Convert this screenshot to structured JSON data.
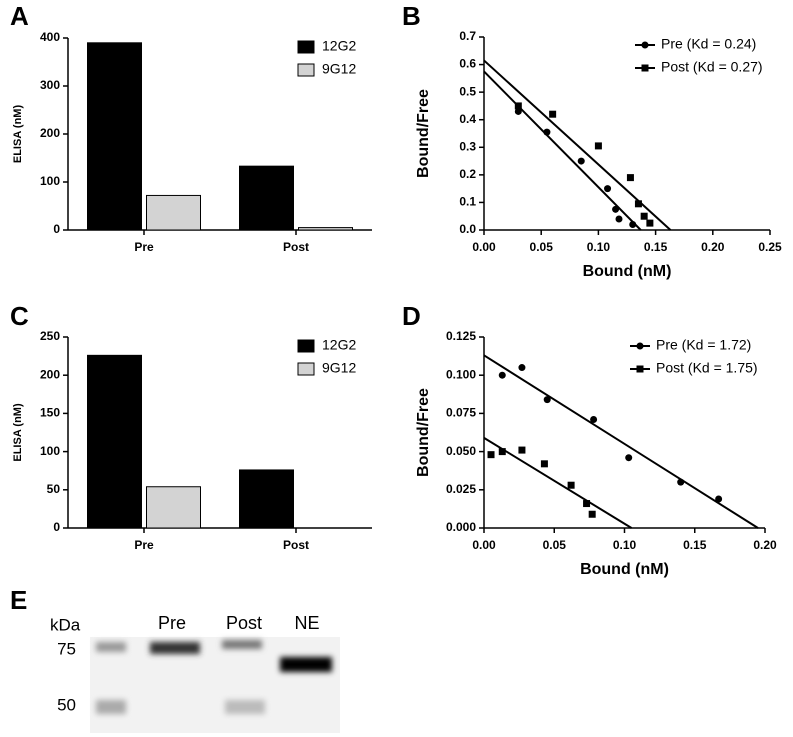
{
  "chart_data": [
    {
      "type": "bar",
      "panel": "A",
      "ylabel": "ELISA (nM)",
      "categories": [
        "Pre",
        "Post"
      ],
      "series": [
        {
          "name": "12G2",
          "color": "#000000",
          "values": [
            390,
            133
          ]
        },
        {
          "name": "9G12",
          "color": "#d3d3d3",
          "values": [
            72,
            5
          ]
        }
      ],
      "ylim": [
        0,
        400
      ],
      "yticks": [
        0,
        100,
        200,
        300,
        400
      ]
    },
    {
      "type": "scatter",
      "panel": "B",
      "xlabel": "Bound (nM)",
      "ylabel": "Bound/Free",
      "series": [
        {
          "name": "Pre (Kd = 0.24)",
          "color": "#000000",
          "marker": "circle",
          "x": [
            0.03,
            0.055,
            0.085,
            0.108,
            0.115,
            0.118,
            0.13
          ],
          "values": [
            0.43,
            0.355,
            0.25,
            0.15,
            0.075,
            0.04,
            0.02
          ],
          "fit": {
            "x": [
              0,
              0.137
            ],
            "y": [
              0.575,
              0
            ]
          }
        },
        {
          "name": "Post (Kd = 0.27)",
          "color": "#000000",
          "marker": "square",
          "x": [
            0.03,
            0.06,
            0.1,
            0.128,
            0.135,
            0.14,
            0.145
          ],
          "values": [
            0.45,
            0.42,
            0.305,
            0.19,
            0.095,
            0.05,
            0.025
          ],
          "fit": {
            "x": [
              0,
              0.163
            ],
            "y": [
              0.615,
              0
            ]
          }
        }
      ],
      "xlim": [
        0,
        0.25
      ],
      "xticks": [
        {
          "value": 0,
          "label": "0.00"
        },
        0.05,
        {
          "value": 0.1,
          "label": "0.10"
        },
        0.15,
        {
          "value": 0.2,
          "label": "0.20"
        },
        0.25
      ],
      "ylim": [
        0,
        0.7
      ],
      "yticks": [
        {
          "value": 0,
          "label": "0.0"
        },
        0.1,
        0.2,
        0.3,
        0.4,
        0.5,
        0.6,
        0.7
      ]
    },
    {
      "type": "bar",
      "panel": "C",
      "ylabel": "ELISA (nM)",
      "categories": [
        "Pre",
        "Post"
      ],
      "series": [
        {
          "name": "12G2",
          "color": "#000000",
          "values": [
            226,
            76
          ]
        },
        {
          "name": "9G12",
          "color": "#d3d3d3",
          "values": [
            54,
            0
          ]
        }
      ],
      "ylim": [
        0,
        250
      ],
      "yticks": [
        0,
        50,
        100,
        150,
        200,
        250
      ]
    },
    {
      "type": "scatter",
      "panel": "D",
      "xlabel": "Bound (nM)",
      "ylabel": "Bound/Free",
      "series": [
        {
          "name": "Pre (Kd = 1.72)",
          "color": "#000000",
          "marker": "circle",
          "x": [
            0.013,
            0.027,
            0.045,
            0.078,
            0.103,
            0.14,
            0.167
          ],
          "values": [
            0.1,
            0.105,
            0.084,
            0.071,
            0.046,
            0.03,
            0.019
          ],
          "fit": {
            "x": [
              0,
              0.195
            ],
            "y": [
              0.113,
              0
            ]
          }
        },
        {
          "name": "Post (Kd = 1.75)",
          "color": "#000000",
          "marker": "square",
          "x": [
            0.005,
            0.013,
            0.027,
            0.043,
            0.062,
            0.073,
            0.077
          ],
          "values": [
            0.048,
            0.05,
            0.051,
            0.042,
            0.028,
            0.016,
            0.009
          ],
          "fit": {
            "x": [
              0,
              0.105
            ],
            "y": [
              0.059,
              0
            ]
          }
        }
      ],
      "xlim": [
        0,
        0.2
      ],
      "xticks": [
        {
          "value": 0,
          "label": "0.00"
        },
        0.05,
        {
          "value": 0.1,
          "label": "0.10"
        },
        0.15,
        {
          "value": 0.2,
          "label": "0.20"
        }
      ],
      "ylim": [
        0,
        0.125
      ],
      "yticks": [
        {
          "value": 0,
          "label": "0.000"
        },
        0.025,
        {
          "value": 0.05,
          "label": "0.050"
        },
        0.075,
        {
          "value": 0.1,
          "label": "0.100"
        },
        0.125
      ]
    }
  ],
  "blot": {
    "panel": "E",
    "unit": "kDa",
    "markers": [
      "75",
      "50"
    ],
    "lanes": [
      "Pre",
      "Post",
      "NE"
    ]
  }
}
